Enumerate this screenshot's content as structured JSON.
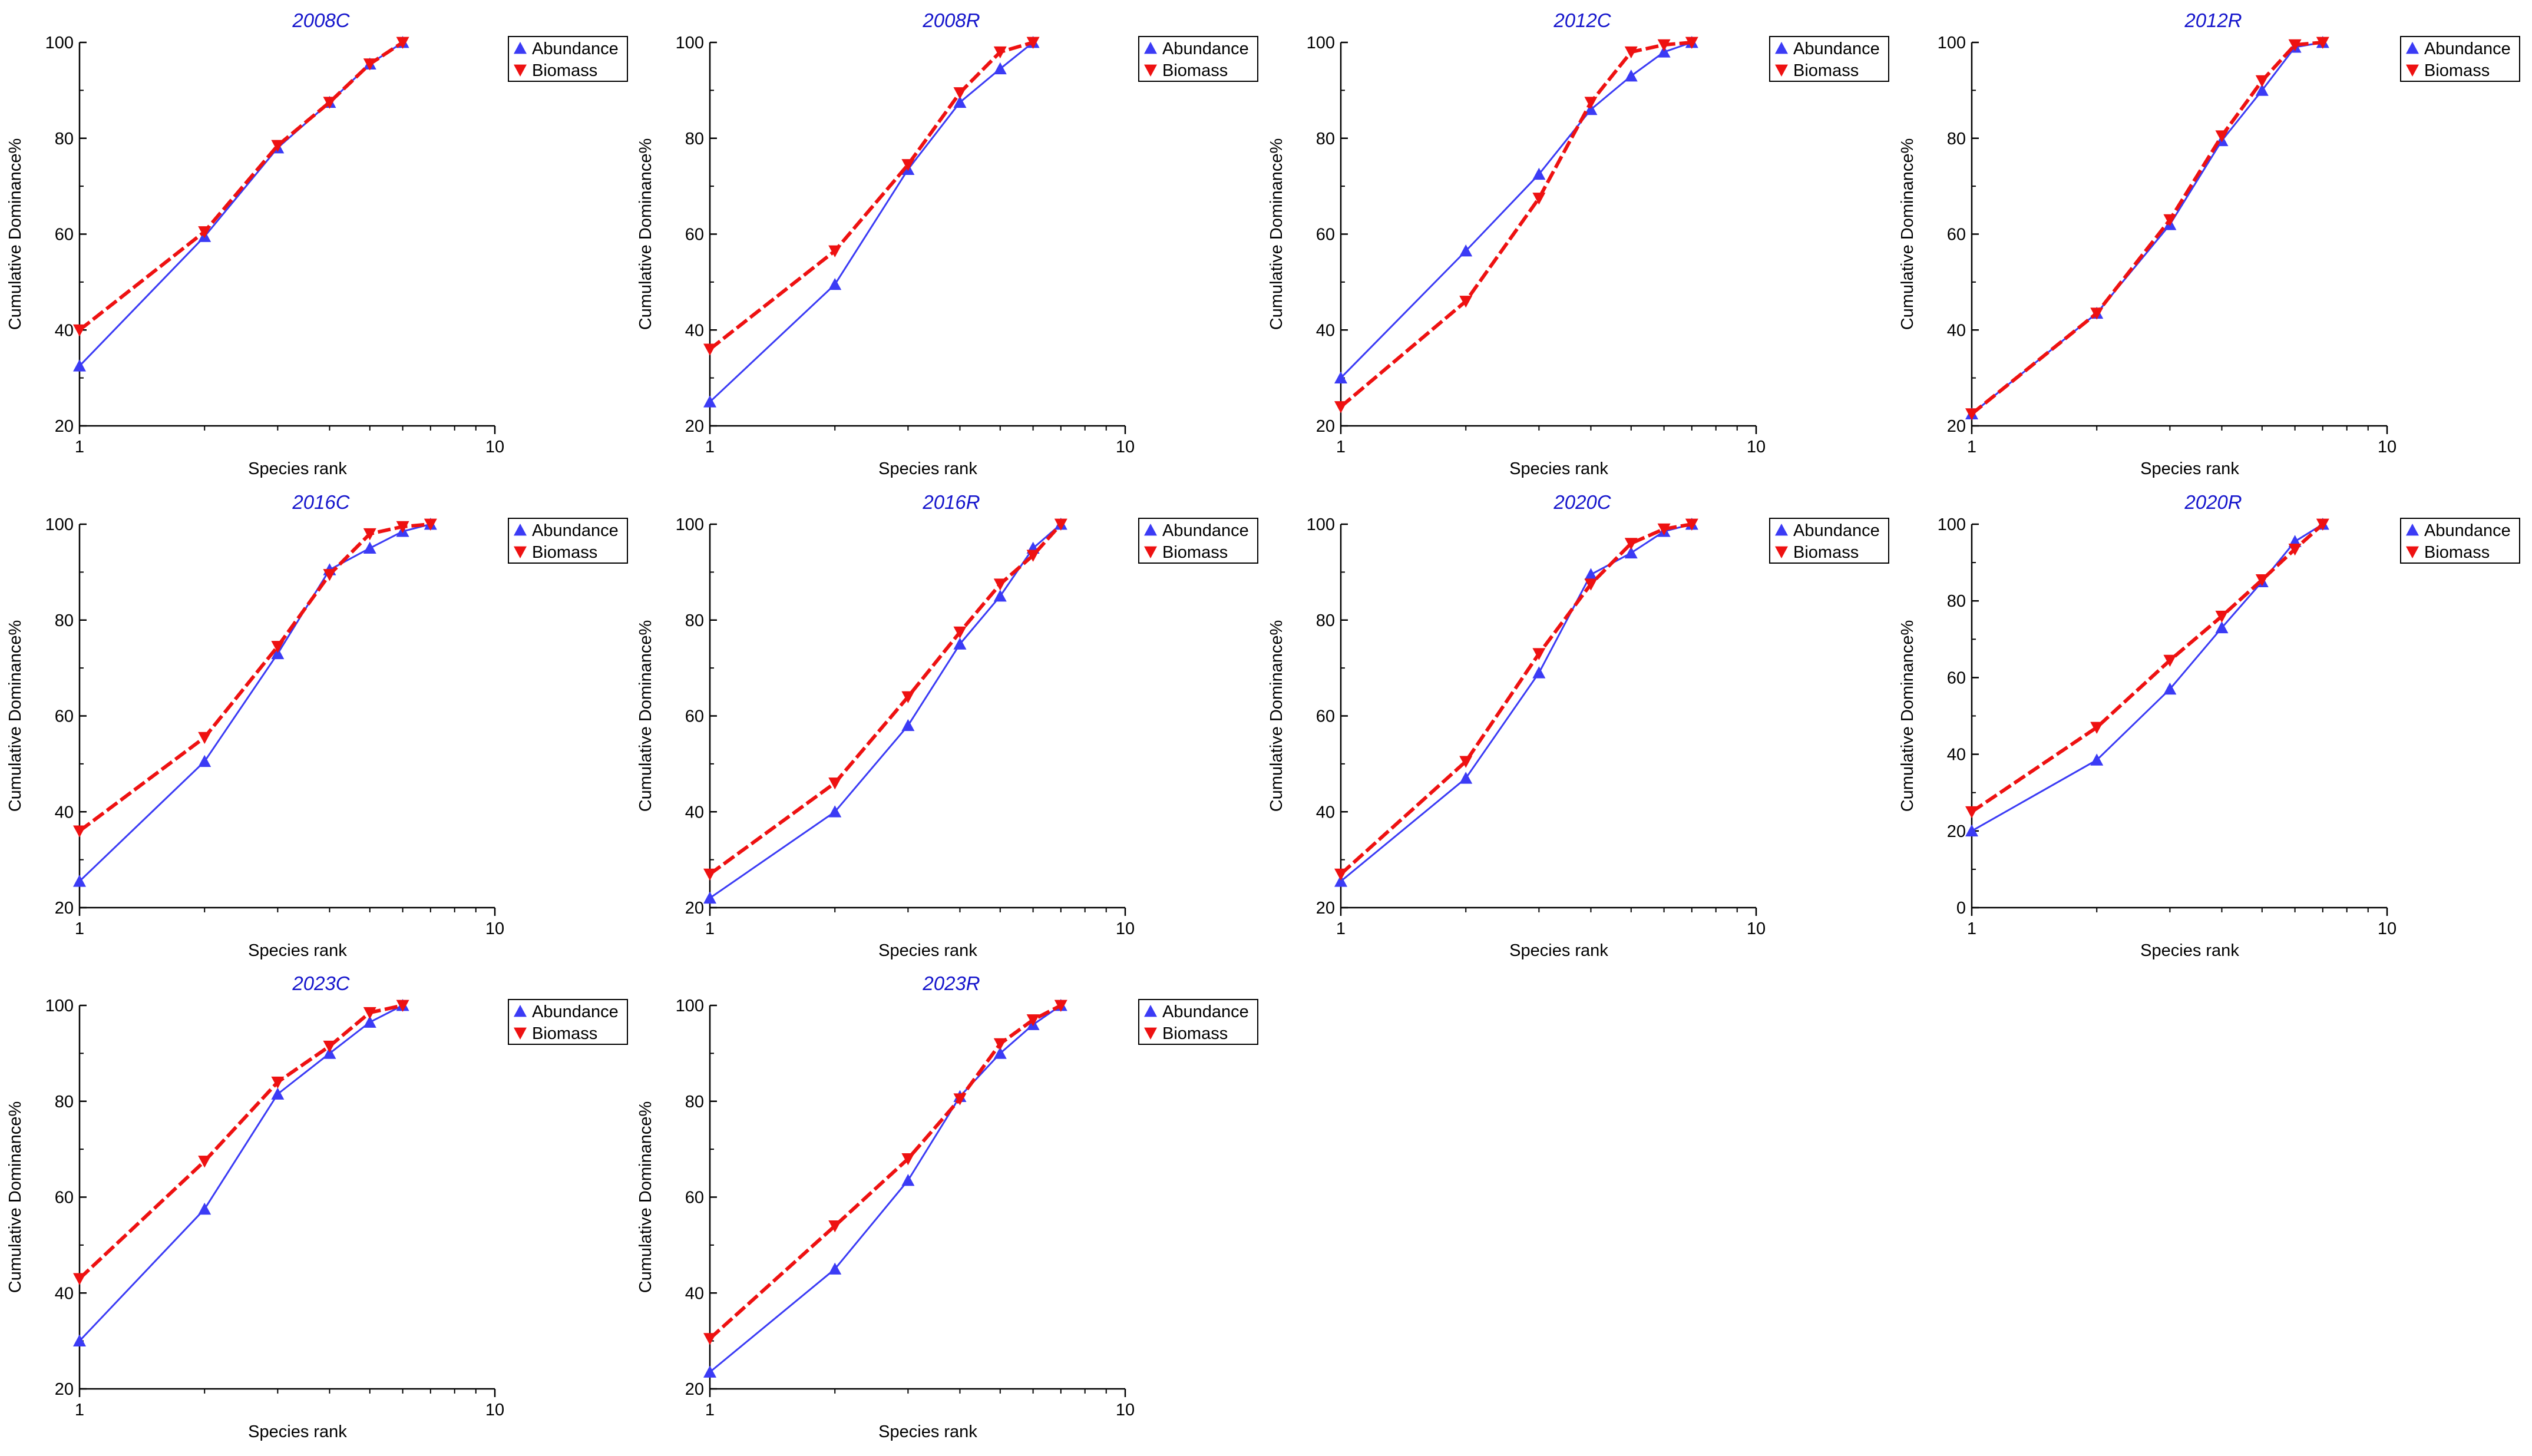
{
  "colors": {
    "abundance": "#3b3bf5",
    "biomass": "#ee1111",
    "title": "#1515cc",
    "axis": "#000000"
  },
  "chart_data": [
    {
      "type": "line",
      "title": "2008C",
      "xlabel": "Species rank",
      "ylabel": "Cumulative Dominance%",
      "xscale": "log",
      "xlim": [
        1,
        10
      ],
      "ylim": [
        20,
        100
      ],
      "yticks": [
        20,
        40,
        60,
        80,
        100
      ],
      "xticks": [
        1,
        10
      ],
      "legend": "top-right",
      "series": [
        {
          "name": "Abundance",
          "x": [
            1,
            2,
            3,
            4,
            5,
            6
          ],
          "y": [
            32.5,
            59.5,
            78,
            87.5,
            95.5,
            100
          ]
        },
        {
          "name": "Biomass",
          "x": [
            1,
            2,
            3,
            4,
            5,
            6
          ],
          "y": [
            40,
            60.5,
            78.5,
            87.5,
            95.5,
            100
          ]
        }
      ]
    },
    {
      "type": "line",
      "title": "2008R",
      "xlabel": "Species rank",
      "ylabel": "Cumulative Dominance%",
      "xscale": "log",
      "xlim": [
        1,
        10
      ],
      "ylim": [
        20,
        100
      ],
      "yticks": [
        20,
        40,
        60,
        80,
        100
      ],
      "xticks": [
        1,
        10
      ],
      "legend": "top-right",
      "series": [
        {
          "name": "Abundance",
          "x": [
            1,
            2,
            3,
            4,
            5,
            6
          ],
          "y": [
            25,
            49.5,
            73.5,
            87.5,
            94.5,
            100
          ]
        },
        {
          "name": "Biomass",
          "x": [
            1,
            2,
            3,
            4,
            5,
            6
          ],
          "y": [
            36,
            56.5,
            74.5,
            89.5,
            98,
            100
          ]
        }
      ]
    },
    {
      "type": "line",
      "title": "2012C",
      "xlabel": "Species rank",
      "ylabel": "Cumulative Dominance%",
      "xscale": "log",
      "xlim": [
        1,
        10
      ],
      "ylim": [
        20,
        100
      ],
      "yticks": [
        20,
        40,
        60,
        80,
        100
      ],
      "xticks": [
        1,
        10
      ],
      "legend": "top-right",
      "series": [
        {
          "name": "Abundance",
          "x": [
            1,
            2,
            3,
            4,
            5,
            6,
            7
          ],
          "y": [
            30,
            56.5,
            72.5,
            86,
            93,
            98,
            100
          ]
        },
        {
          "name": "Biomass",
          "x": [
            1,
            2,
            3,
            4,
            5,
            6,
            7
          ],
          "y": [
            24,
            46,
            67.5,
            87.5,
            98,
            99.5,
            100
          ]
        }
      ]
    },
    {
      "type": "line",
      "title": "2012R",
      "xlabel": "Species rank",
      "ylabel": "Cumulative Dominance%",
      "xscale": "log",
      "xlim": [
        1,
        10
      ],
      "ylim": [
        20,
        100
      ],
      "yticks": [
        20,
        40,
        60,
        80,
        100
      ],
      "xticks": [
        1,
        10
      ],
      "legend": "top-right",
      "series": [
        {
          "name": "Abundance",
          "x": [
            1,
            2,
            3,
            4,
            5,
            6,
            7
          ],
          "y": [
            22.5,
            43.5,
            62,
            79.5,
            90,
            99,
            100
          ]
        },
        {
          "name": "Biomass",
          "x": [
            1,
            2,
            3,
            4,
            5,
            6,
            7
          ],
          "y": [
            22.5,
            43.5,
            63,
            80.5,
            92,
            99.5,
            100
          ]
        }
      ]
    },
    {
      "type": "line",
      "title": "2016C",
      "xlabel": "Species rank",
      "ylabel": "Cumulative Dominance%",
      "xscale": "log",
      "xlim": [
        1,
        10
      ],
      "ylim": [
        20,
        100
      ],
      "yticks": [
        20,
        40,
        60,
        80,
        100
      ],
      "xticks": [
        1,
        10
      ],
      "legend": "top-right",
      "series": [
        {
          "name": "Abundance",
          "x": [
            1,
            2,
            3,
            4,
            5,
            6,
            7
          ],
          "y": [
            25.5,
            50.5,
            73,
            90.5,
            95,
            98.5,
            100
          ]
        },
        {
          "name": "Biomass",
          "x": [
            1,
            2,
            3,
            4,
            5,
            6,
            7
          ],
          "y": [
            36,
            55.5,
            74.5,
            89.5,
            98,
            99.5,
            100
          ]
        }
      ]
    },
    {
      "type": "line",
      "title": "2016R",
      "xlabel": "Species rank",
      "ylabel": "Cumulative Dominance%",
      "xscale": "log",
      "xlim": [
        1,
        10
      ],
      "ylim": [
        20,
        100
      ],
      "yticks": [
        20,
        40,
        60,
        80,
        100
      ],
      "xticks": [
        1,
        10
      ],
      "legend": "top-right",
      "series": [
        {
          "name": "Abundance",
          "x": [
            1,
            2,
            3,
            4,
            5,
            6,
            7
          ],
          "y": [
            22,
            40,
            58,
            75,
            85,
            95,
            100
          ]
        },
        {
          "name": "Biomass",
          "x": [
            1,
            2,
            3,
            4,
            5,
            6,
            7
          ],
          "y": [
            27,
            46,
            64,
            77.5,
            87.5,
            93.5,
            100
          ]
        }
      ]
    },
    {
      "type": "line",
      "title": "2020C",
      "xlabel": "Species rank",
      "ylabel": "Cumulative Dominance%",
      "xscale": "log",
      "xlim": [
        1,
        10
      ],
      "ylim": [
        20,
        100
      ],
      "yticks": [
        20,
        40,
        60,
        80,
        100
      ],
      "xticks": [
        1,
        10
      ],
      "legend": "top-right",
      "series": [
        {
          "name": "Abundance",
          "x": [
            1,
            2,
            3,
            4,
            5,
            6,
            7
          ],
          "y": [
            25.5,
            47,
            69,
            89.5,
            94,
            98.5,
            100
          ]
        },
        {
          "name": "Biomass",
          "x": [
            1,
            2,
            3,
            4,
            5,
            6,
            7
          ],
          "y": [
            27,
            50.5,
            73,
            87.5,
            96,
            99,
            100
          ]
        }
      ]
    },
    {
      "type": "line",
      "title": "2020R",
      "xlabel": "Species rank",
      "ylabel": "Cumulative Dominance%",
      "xscale": "log",
      "xlim": [
        1,
        10
      ],
      "ylim": [
        0,
        100
      ],
      "yticks": [
        0,
        20,
        40,
        60,
        80,
        100
      ],
      "xticks": [
        1,
        10
      ],
      "legend": "top-right",
      "series": [
        {
          "name": "Abundance",
          "x": [
            1,
            2,
            3,
            4,
            5,
            6,
            7
          ],
          "y": [
            20,
            38.5,
            57,
            73,
            85,
            95.5,
            100
          ]
        },
        {
          "name": "Biomass",
          "x": [
            1,
            2,
            3,
            4,
            5,
            6,
            7
          ],
          "y": [
            25,
            47,
            64.5,
            76,
            85.5,
            93.5,
            100
          ]
        }
      ]
    },
    {
      "type": "line",
      "title": "2023C",
      "xlabel": "Species rank",
      "ylabel": "Cumulative Dominance%",
      "xscale": "log",
      "xlim": [
        1,
        10
      ],
      "ylim": [
        20,
        100
      ],
      "yticks": [
        20,
        40,
        60,
        80,
        100
      ],
      "xticks": [
        1,
        10
      ],
      "legend": "top-right",
      "series": [
        {
          "name": "Abundance",
          "x": [
            1,
            2,
            3,
            4,
            5,
            6
          ],
          "y": [
            30,
            57.5,
            81.5,
            90,
            96.5,
            100
          ]
        },
        {
          "name": "Biomass",
          "x": [
            1,
            2,
            3,
            4,
            5,
            6
          ],
          "y": [
            43,
            67.5,
            84,
            91.5,
            98.5,
            100
          ]
        }
      ]
    },
    {
      "type": "line",
      "title": "2023R",
      "xlabel": "Species rank",
      "ylabel": "Cumulative Dominance%",
      "xscale": "log",
      "xlim": [
        1,
        10
      ],
      "ylim": [
        20,
        100
      ],
      "yticks": [
        20,
        40,
        60,
        80,
        100
      ],
      "xticks": [
        1,
        10
      ],
      "legend": "top-right",
      "series": [
        {
          "name": "Abundance",
          "x": [
            1,
            2,
            3,
            4,
            5,
            6,
            7
          ],
          "y": [
            23.5,
            45,
            63.5,
            81,
            90,
            96,
            100
          ]
        },
        {
          "name": "Biomass",
          "x": [
            1,
            2,
            3,
            4,
            5,
            6,
            7
          ],
          "y": [
            30.5,
            54,
            68,
            80.5,
            92,
            97,
            100
          ]
        }
      ]
    }
  ]
}
